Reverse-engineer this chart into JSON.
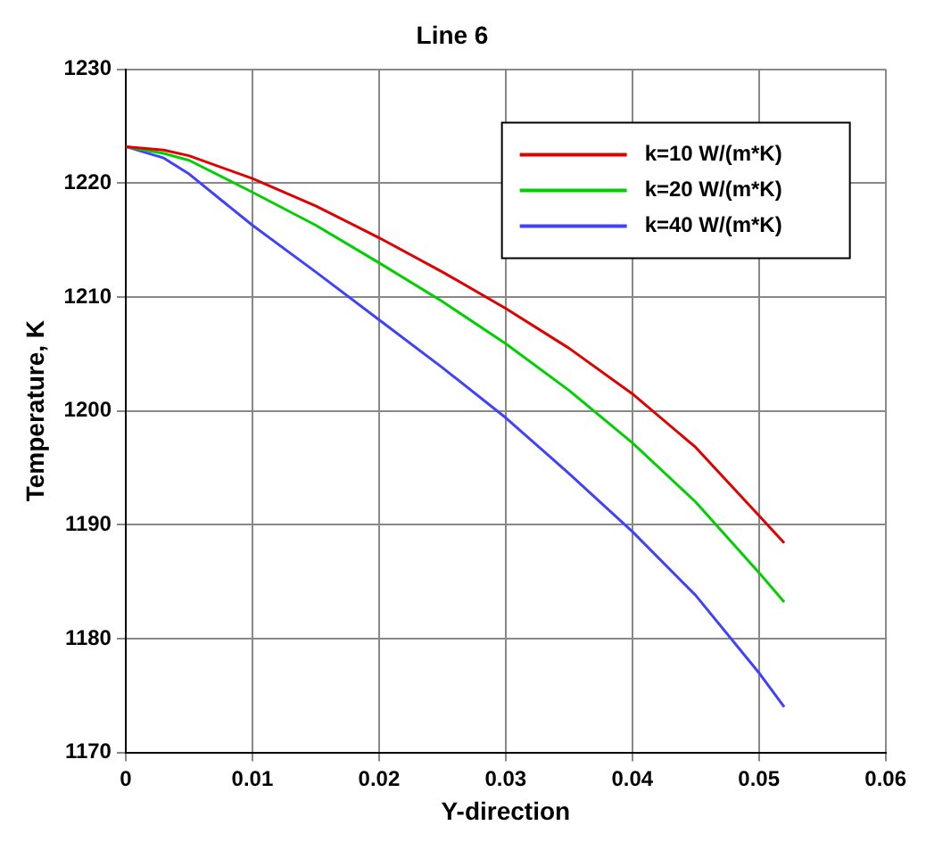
{
  "chart_data": {
    "type": "line",
    "title": "Line 6",
    "xlabel": "Y-direction",
    "ylabel": "Temperature, K",
    "xlim": [
      0,
      0.06
    ],
    "xticks": [
      0,
      0.01,
      0.02,
      0.03,
      0.04,
      0.05,
      0.06
    ],
    "ylim": [
      1170,
      1230
    ],
    "yticks": [
      1170,
      1180,
      1190,
      1200,
      1210,
      1220,
      1230
    ],
    "grid": true,
    "legend": "top right",
    "marker": "none",
    "line_style": "solid",
    "x": [
      0,
      0.003,
      0.005,
      0.01,
      0.015,
      0.02,
      0.025,
      0.03,
      0.035,
      0.04,
      0.045,
      0.05,
      0.052
    ],
    "series": [
      {
        "name": "k=10 W/(m*K)",
        "color": "#e00000",
        "values": [
          1223.2,
          1222.9,
          1222.4,
          1220.4,
          1218,
          1215.2,
          1212.2,
          1209,
          1205.5,
          1201.5,
          1196.8,
          1190.8,
          1188.4
        ]
      },
      {
        "name": "k=20 W/(m*K)",
        "color": "#00d000",
        "values": [
          1223.2,
          1222.6,
          1222,
          1219.2,
          1216.3,
          1213,
          1209.6,
          1205.9,
          1201.8,
          1197.2,
          1192,
          1185.8,
          1183.2
        ]
      },
      {
        "name": "k=40 W/(m*K)",
        "color": "#4040ff",
        "values": [
          1223.2,
          1222.2,
          1220.8,
          1216.3,
          1212.2,
          1208,
          1203.8,
          1199.4,
          1194.5,
          1189.4,
          1183.8,
          1177,
          1174
        ]
      }
    ]
  }
}
